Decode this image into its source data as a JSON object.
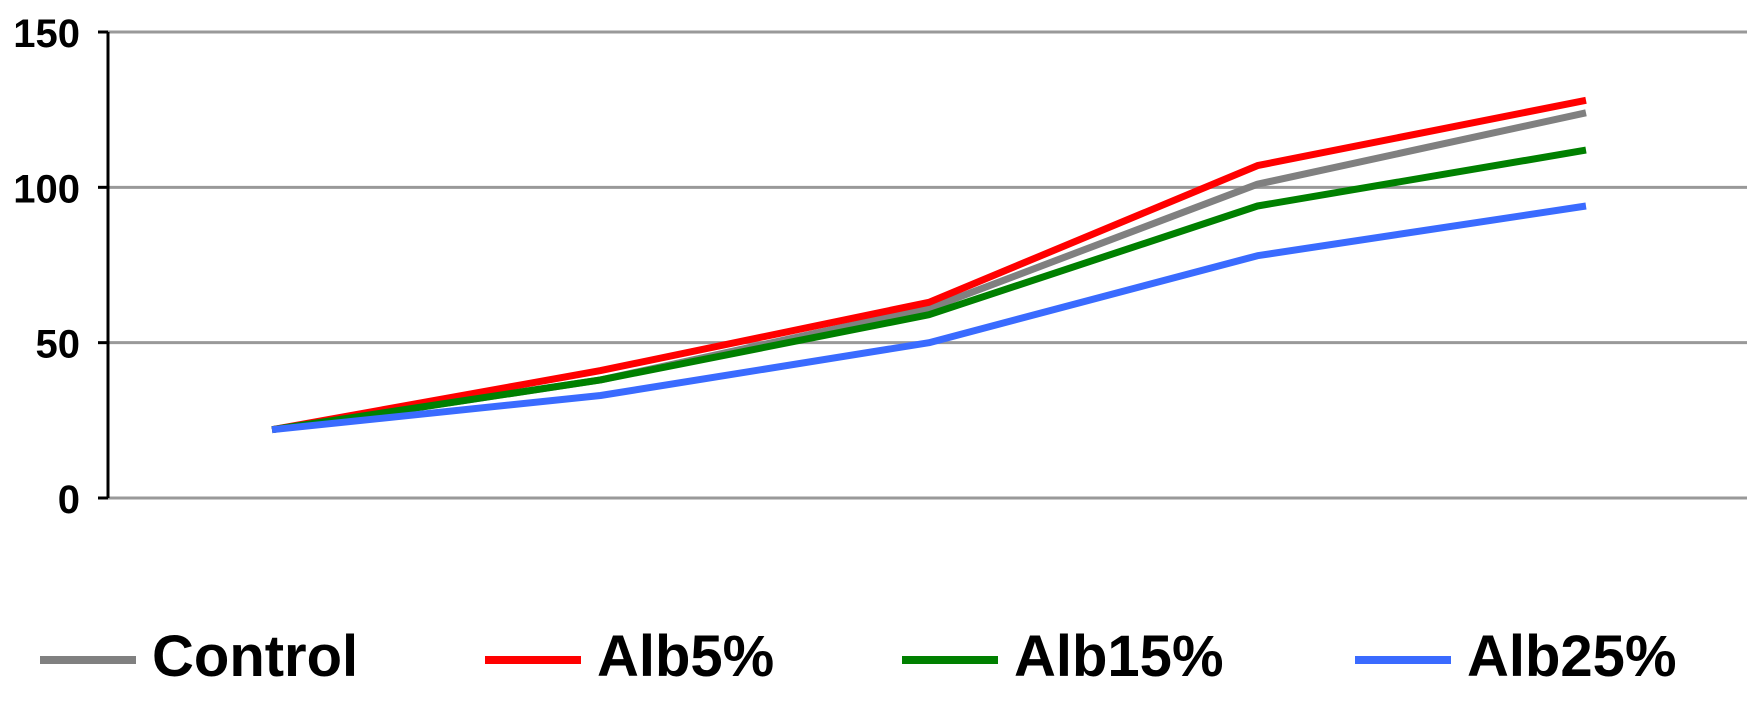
{
  "chart_data": {
    "type": "line",
    "title": "",
    "xlabel": "",
    "ylabel": "",
    "ylim": [
      0,
      150
    ],
    "yticks": [
      "0",
      "50",
      "100",
      "150"
    ],
    "grid": true,
    "legend_position": "bottom",
    "x": [
      1,
      2,
      3,
      4,
      5
    ],
    "series": [
      {
        "name": "Control",
        "color": "#808080",
        "values": [
          22,
          38,
          61,
          101,
          124
        ]
      },
      {
        "name": "Alb5%",
        "color": "#ff0000",
        "values": [
          22,
          41,
          63,
          107,
          128
        ]
      },
      {
        "name": "Alb15%",
        "color": "#008000",
        "values": [
          22,
          38,
          59,
          94,
          112
        ]
      },
      {
        "name": "Alb25%",
        "color": "#3a6bff",
        "values": [
          22,
          33,
          50,
          78,
          94
        ]
      }
    ]
  }
}
